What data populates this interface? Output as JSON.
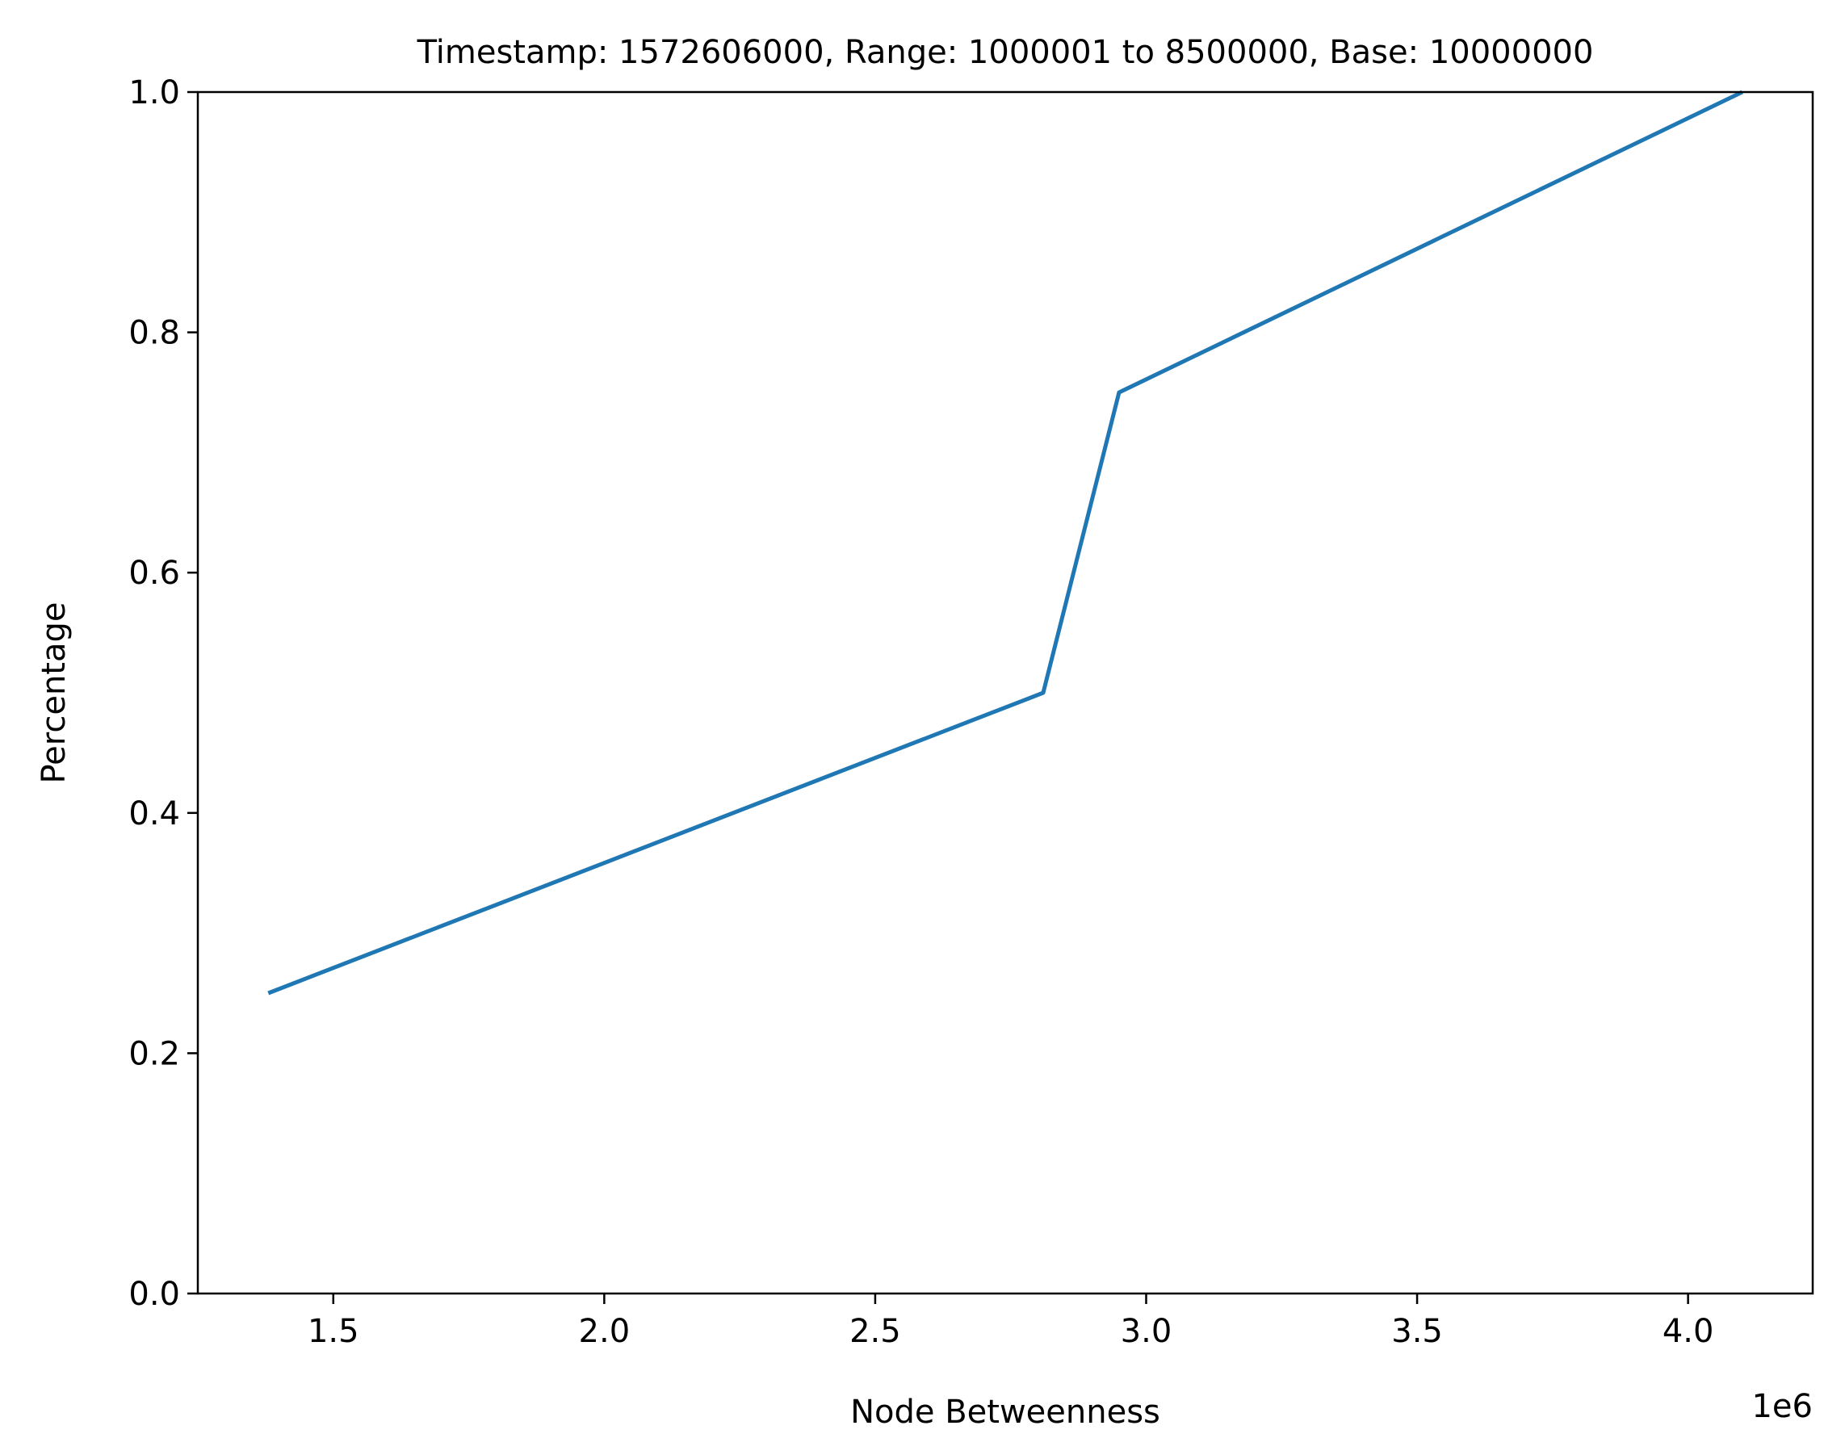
{
  "chart_data": {
    "type": "line",
    "title": "Timestamp: 1572606000, Range: 1000001 to 8500000, Base: 10000000",
    "xlabel": "Node Betweenness",
    "ylabel": "Percentage",
    "x_offset_label": "1e6",
    "xlim": [
      1.25,
      4.23
    ],
    "ylim": [
      0.0,
      1.0
    ],
    "x_ticks": [
      1.5,
      2.0,
      2.5,
      3.0,
      3.5,
      4.0
    ],
    "x_tick_labels": [
      "1.5",
      "2.0",
      "2.5",
      "3.0",
      "3.5",
      "4.0"
    ],
    "y_ticks": [
      0.0,
      0.2,
      0.4,
      0.6,
      0.8,
      1.0
    ],
    "y_tick_labels": [
      "0.0",
      "0.2",
      "0.4",
      "0.6",
      "0.8",
      "1.0"
    ],
    "grid": false,
    "series": [
      {
        "color": "#1f77b4",
        "x": [
          1.38,
          2.81,
          2.95,
          4.1
        ],
        "y": [
          0.25,
          0.5,
          0.75,
          1.0
        ]
      }
    ]
  }
}
